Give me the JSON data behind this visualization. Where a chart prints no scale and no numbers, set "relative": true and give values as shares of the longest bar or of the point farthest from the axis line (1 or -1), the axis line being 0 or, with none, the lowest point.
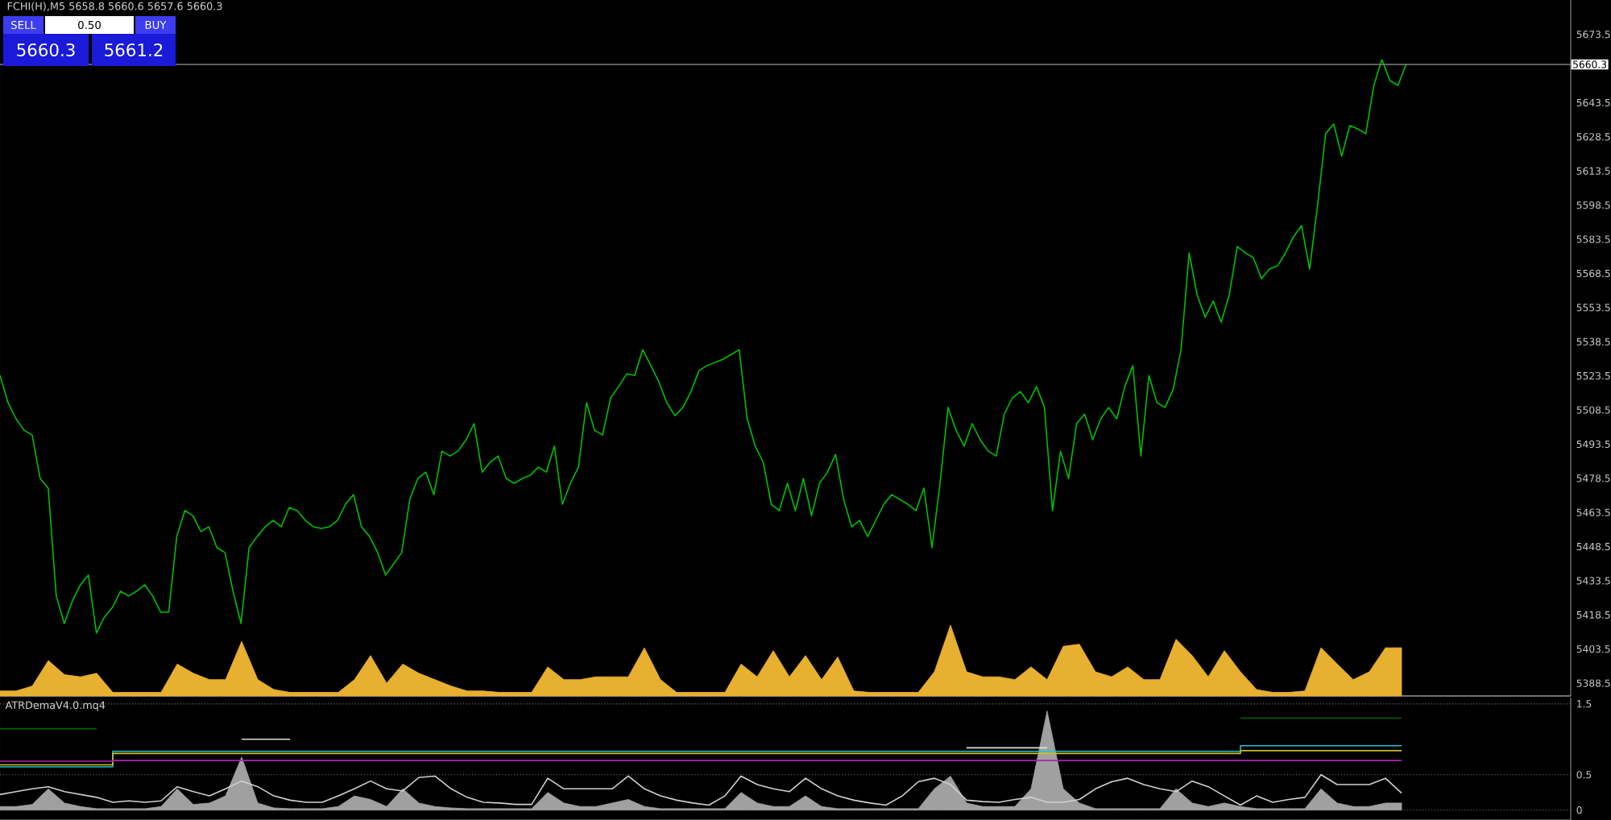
{
  "chart_data": [
    {
      "type": "line",
      "title": "FCHI(H),M5  5658.8 5660.6 5657.6 5660.3",
      "annotations": [
        "SELL",
        "0.50",
        "BUY",
        "5660.3",
        "5661.2"
      ],
      "categories": [
        null,
        null,
        null,
        null,
        null,
        null,
        null,
        null,
        null,
        null,
        null,
        null,
        null,
        null,
        null,
        null,
        null,
        null,
        null,
        null,
        null,
        null,
        null,
        null,
        null,
        null,
        null,
        null,
        null,
        null,
        null,
        null,
        null,
        null,
        null,
        null,
        null,
        null,
        null,
        null,
        null,
        null,
        null,
        null,
        null,
        null,
        null,
        null,
        null,
        null,
        null,
        null,
        null,
        null,
        null,
        null,
        null,
        null,
        null,
        null,
        null,
        null,
        null,
        null,
        null,
        null,
        null,
        null,
        null,
        null,
        null,
        null,
        null,
        null,
        null,
        null,
        null,
        null,
        null,
        null,
        null,
        null,
        null,
        null,
        null,
        null,
        null,
        null,
        null,
        null,
        null,
        null,
        null,
        null,
        null,
        null,
        null,
        null,
        null,
        null,
        null,
        null,
        null,
        null,
        null,
        null,
        null,
        null,
        null,
        null,
        null,
        null,
        null,
        null,
        null,
        null,
        null,
        null,
        null,
        null,
        null,
        null,
        null,
        null,
        null,
        null,
        null,
        null,
        null,
        null,
        null,
        null,
        null,
        null,
        null,
        null,
        null,
        null,
        null,
        null,
        null,
        null,
        null,
        null,
        null,
        null,
        null,
        null,
        null,
        null,
        null,
        null,
        null,
        null,
        null,
        null,
        null,
        null,
        null,
        null,
        null,
        null,
        null,
        null,
        null,
        null,
        null,
        null,
        null,
        null,
        null,
        null,
        null,
        null,
        null,
        null,
        null,
        null,
        null,
        null,
        null,
        null,
        null,
        null,
        null,
        null,
        null,
        null,
        null,
        null,
        null,
        null,
        null,
        null,
        null,
        null
      ],
      "ylim": [
        5382.9,
        5688.6
      ],
      "yticks": [
        5388.5,
        5403.5,
        5418.5,
        5433.5,
        5448.5,
        5463.5,
        5478.5,
        5493.5,
        5508.5,
        5523.5,
        5538.5,
        5553.5,
        5568.5,
        5583.5,
        5598.5,
        5613.5,
        5628.5,
        5643.5,
        5673.5
      ],
      "tick_labels": "y",
      "ref_lines": [
        {
          "axis": "y",
          "value": 5660.3,
          "label": "5660.3",
          "color": "#808080"
        }
      ],
      "series": [
        {
          "color": "#00c000",
          "values": [
            5523.7,
            5511.7,
            5504.6,
            5499.6,
            5497.5,
            5478.4,
            5474.2,
            5426.8,
            5414.7,
            5424.6,
            5431.7,
            5436.0,
            5410.5,
            5417.6,
            5421.8,
            5428.9,
            5426.8,
            5428.9,
            5431.7,
            5426.8,
            5419.7,
            5419.7,
            5452.9,
            5464.3,
            5462.1,
            5455.1,
            5457.2,
            5448.0,
            5445.9,
            5428.9,
            5414.7,
            5448.0,
            5452.9,
            5457.2,
            5460.0,
            5457.2,
            5465.7,
            5464.3,
            5460.0,
            5457.2,
            5456.5,
            5457.2,
            5460.0,
            5467.1,
            5471.3,
            5457.2,
            5452.9,
            5445.9,
            5436.0,
            5440.9,
            5445.9,
            5469.2,
            5478.4,
            5481.2,
            5471.3,
            5490.4,
            5488.3,
            5490.4,
            5495.4,
            5502.5,
            5481.2,
            5485.5,
            5488.3,
            5478.4,
            5476.3,
            5478.4,
            5479.8,
            5483.4,
            5481.2,
            5492.6,
            5467.1,
            5476.3,
            5483.4,
            5511.7,
            5499.6,
            5497.5,
            5513.8,
            5518.8,
            5524.4,
            5523.7,
            5535.0,
            5528.0,
            5520.9,
            5511.7,
            5506.0,
            5509.6,
            5516.6,
            5525.8,
            5528.0,
            5529.4,
            5530.8,
            5532.9,
            5535.0,
            5504.6,
            5492.6,
            5485.5,
            5467.1,
            5464.3,
            5476.3,
            5464.3,
            5478.4,
            5462.1,
            5476.3,
            5481.2,
            5489.0,
            5469.2,
            5457.2,
            5460.0,
            5452.9,
            5460.0,
            5467.1,
            5471.3,
            5469.2,
            5467.1,
            5464.3,
            5474.2,
            5448.0,
            5476.3,
            5509.6,
            5499.6,
            5492.6,
            5502.5,
            5495.4,
            5490.4,
            5488.3,
            5506.7,
            5513.8,
            5516.6,
            5511.7,
            5518.8,
            5509.6,
            5464.3,
            5490.4,
            5478.4,
            5502.5,
            5506.7,
            5495.4,
            5504.6,
            5509.6,
            5504.6,
            5518.8,
            5528.0,
            5488.3,
            5523.7,
            5511.7,
            5509.6,
            5517.3,
            5535.0,
            5577.5,
            5559.1,
            5549.2,
            5556.3,
            5547.1,
            5559.1,
            5580.3,
            5577.5,
            5575.4,
            5566.2,
            5570.4,
            5571.8,
            5577.5,
            5584.6,
            5589.5,
            5570.4,
            5598.7,
            5629.9,
            5634.1,
            5620.0,
            5633.4,
            5632.0,
            5629.9,
            5651.1,
            5662.4,
            5653.2,
            5651.1,
            5660.3,
            null,
            null,
            null,
            null,
            null,
            null,
            null,
            null,
            null,
            null,
            null,
            null,
            null,
            null,
            null,
            null,
            null,
            null,
            null,
            null
          ]
        }
      ]
    },
    {
      "type": "area",
      "relative": true,
      "tick_labels": false,
      "categories": [
        null,
        null,
        null,
        null,
        null,
        null,
        null,
        null,
        null,
        null,
        null,
        null,
        null,
        null,
        null,
        null,
        null,
        null,
        null,
        null,
        null,
        null,
        null,
        null,
        null,
        null,
        null,
        null,
        null,
        null,
        null,
        null,
        null,
        null,
        null,
        null,
        null,
        null,
        null,
        null,
        null,
        null,
        null,
        null,
        null,
        null,
        null,
        null,
        null,
        null,
        null,
        null,
        null,
        null,
        null,
        null,
        null,
        null,
        null,
        null,
        null,
        null,
        null,
        null,
        null,
        null,
        null,
        null,
        null,
        null,
        null,
        null,
        null,
        null,
        null,
        null,
        null,
        null,
        null,
        null,
        null,
        null,
        null,
        null,
        null,
        null,
        null,
        null,
        null,
        null,
        null,
        null,
        null,
        null,
        null,
        null,
        null,
        null
      ],
      "series": [
        {
          "color": "#e8b030",
          "values": [
            0.07,
            0.07,
            0.14,
            0.5,
            0.3,
            0.27,
            0.32,
            0.05,
            0.05,
            0.05,
            0.05,
            0.45,
            0.32,
            0.23,
            0.23,
            0.77,
            0.23,
            0.09,
            0.05,
            0.05,
            0.05,
            0.05,
            0.23,
            0.57,
            0.18,
            0.45,
            0.32,
            0.23,
            0.14,
            0.07,
            0.07,
            0.05,
            0.05,
            0.05,
            0.41,
            0.23,
            0.23,
            0.27,
            0.27,
            0.27,
            0.68,
            0.23,
            0.05,
            0.05,
            0.05,
            0.05,
            0.45,
            0.27,
            0.64,
            0.27,
            0.57,
            0.23,
            0.55,
            0.07,
            0.05,
            0.05,
            0.05,
            0.05,
            0.34,
            1,
            0.34,
            0.27,
            0.27,
            0.23,
            0.41,
            0.23,
            0.7,
            0.73,
            0.34,
            0.27,
            0.41,
            0.23,
            0.23,
            0.8,
            0.57,
            0.27,
            0.64,
            0.34,
            0.09,
            0.05,
            0.05,
            0.07,
            0.68,
            0.45,
            0.23,
            0.34,
            0.68,
            0.68,
            null,
            null,
            null,
            null,
            null,
            null,
            null,
            null,
            null,
            null
          ]
        }
      ]
    },
    {
      "type": "line",
      "title": "ATRDemaV4.0.mq4",
      "categories": [
        null,
        null,
        null,
        null,
        null,
        null,
        null,
        null,
        null,
        null,
        null,
        null,
        null,
        null,
        null,
        null,
        null,
        null,
        null,
        null,
        null,
        null,
        null,
        null,
        null,
        null,
        null,
        null,
        null,
        null,
        null,
        null,
        null,
        null,
        null,
        null,
        null,
        null,
        null,
        null,
        null,
        null,
        null,
        null,
        null,
        null,
        null,
        null,
        null,
        null,
        null,
        null,
        null,
        null,
        null,
        null,
        null,
        null,
        null,
        null,
        null,
        null,
        null,
        null,
        null,
        null,
        null,
        null,
        null,
        null,
        null,
        null,
        null,
        null,
        null,
        null,
        null,
        null,
        null,
        null,
        null,
        null,
        null,
        null,
        null,
        null,
        null,
        null,
        null,
        null,
        null,
        null,
        null,
        null,
        null,
        null,
        null,
        null
      ],
      "ylim": [
        -0.14,
        1.59
      ],
      "yticks": [
        0,
        0.5,
        1.5
      ],
      "grid": "y",
      "tick_labels": "y",
      "series": [
        {
          "type": "area",
          "color": "#a0a0a0",
          "values": [
            0.05,
            0.05,
            0.08,
            0.3,
            0.1,
            0.05,
            0.02,
            0.02,
            0.02,
            0.02,
            0.05,
            0.3,
            0.08,
            0.1,
            0.2,
            0.75,
            0.1,
            0.03,
            0.02,
            0.02,
            0.02,
            0.05,
            0.2,
            0.15,
            0.05,
            0.3,
            0.1,
            0.05,
            0.03,
            0.02,
            0.02,
            0.02,
            0.02,
            0.02,
            0.25,
            0.1,
            0.05,
            0.05,
            0.1,
            0.15,
            0.05,
            0.02,
            0.02,
            0.02,
            0.02,
            0.02,
            0.25,
            0.1,
            0.05,
            0.05,
            0.2,
            0.05,
            0.02,
            0.02,
            0.02,
            0.02,
            0.02,
            0.02,
            0.3,
            0.48,
            0.1,
            0.05,
            0.05,
            0.05,
            0.3,
            1.4,
            0.3,
            0.1,
            0.02,
            0.02,
            0.02,
            0.02,
            0.02,
            0.3,
            0.1,
            0.05,
            0.1,
            0.05,
            0.02,
            0.02,
            0.02,
            0.02,
            0.3,
            0.1,
            0.05,
            0.05,
            0.1,
            0.1,
            null,
            null,
            null,
            null,
            null,
            null,
            null,
            null,
            null,
            null
          ]
        },
        {
          "type": "step",
          "color": "#006400",
          "values": [
            1.15,
            1.15,
            1.15,
            1.15,
            1.15,
            1.15,
            1.15,
            null,
            null,
            null,
            null,
            null,
            null,
            null,
            null,
            null,
            null,
            null,
            null,
            null,
            null,
            null,
            null,
            null,
            null,
            null,
            null,
            null,
            null,
            null,
            null,
            null,
            null,
            null,
            null,
            null,
            null,
            null,
            null,
            null,
            null,
            null,
            null,
            null,
            null,
            null,
            null,
            null,
            null,
            null,
            null,
            null,
            null,
            null,
            null,
            null,
            null,
            null,
            null,
            null,
            null,
            null,
            null,
            null,
            null,
            null,
            null,
            null,
            null,
            null,
            null,
            null,
            null,
            null,
            null,
            null,
            null,
            1.3,
            1.3,
            1.3,
            1.3,
            1.3,
            1.3,
            1.3,
            1.3,
            1.3,
            1.3,
            1.3,
            null,
            null,
            null,
            null,
            null,
            null,
            null,
            null,
            null,
            null
          ]
        },
        {
          "type": "step",
          "color": "#20c0d0",
          "values": [
            0.61,
            0.61,
            0.61,
            0.61,
            0.61,
            0.61,
            0.61,
            0.83,
            0.83,
            0.83,
            0.83,
            0.83,
            0.83,
            0.83,
            0.83,
            0.83,
            0.83,
            0.83,
            0.83,
            0.83,
            0.83,
            0.83,
            0.83,
            0.83,
            0.83,
            0.83,
            0.83,
            0.83,
            0.83,
            0.83,
            0.83,
            0.83,
            0.83,
            0.83,
            0.83,
            0.83,
            0.83,
            0.83,
            0.83,
            0.83,
            0.83,
            0.83,
            0.83,
            0.83,
            0.83,
            0.83,
            0.83,
            0.83,
            0.83,
            0.83,
            0.83,
            0.83,
            0.83,
            0.83,
            0.83,
            0.83,
            0.83,
            0.83,
            0.83,
            0.83,
            0.83,
            0.83,
            0.83,
            0.83,
            0.83,
            0.83,
            0.83,
            0.83,
            0.83,
            0.83,
            0.83,
            0.83,
            0.83,
            0.83,
            0.83,
            0.83,
            0.83,
            0.91,
            0.91,
            0.91,
            0.91,
            0.91,
            0.91,
            0.91,
            0.91,
            0.91,
            0.91,
            0.91,
            null,
            null,
            null,
            null,
            null,
            null,
            null,
            null,
            null,
            null
          ]
        },
        {
          "type": "step",
          "color": "#c8c020",
          "values": [
            0.64,
            0.64,
            0.64,
            0.64,
            0.64,
            0.64,
            0.64,
            0.8,
            0.8,
            0.8,
            0.8,
            0.8,
            0.8,
            0.8,
            0.8,
            0.8,
            0.8,
            0.8,
            0.8,
            0.8,
            0.8,
            0.8,
            0.8,
            0.8,
            0.8,
            0.8,
            0.8,
            0.8,
            0.8,
            0.8,
            0.8,
            0.8,
            0.8,
            0.8,
            0.8,
            0.8,
            0.8,
            0.8,
            0.8,
            0.8,
            0.8,
            0.8,
            0.8,
            0.8,
            0.8,
            0.8,
            0.8,
            0.8,
            0.8,
            0.8,
            0.8,
            0.8,
            0.8,
            0.8,
            0.8,
            0.8,
            0.8,
            0.8,
            0.8,
            0.8,
            0.8,
            0.8,
            0.8,
            0.8,
            0.8,
            0.8,
            0.8,
            0.8,
            0.8,
            0.8,
            0.8,
            0.8,
            0.8,
            0.8,
            0.8,
            0.8,
            0.8,
            0.84,
            0.84,
            0.84,
            0.84,
            0.84,
            0.84,
            0.84,
            0.84,
            0.84,
            0.84,
            0.84,
            null,
            null,
            null,
            null,
            null,
            null,
            null,
            null,
            null,
            null
          ]
        },
        {
          "type": "step",
          "color": "#b020b0",
          "values": [
            0.69,
            0.69,
            0.69,
            0.69,
            0.69,
            0.69,
            0.69,
            0.7,
            0.7,
            0.7,
            0.7,
            0.7,
            0.7,
            0.7,
            0.7,
            0.7,
            0.7,
            0.7,
            0.7,
            0.7,
            0.7,
            0.7,
            0.7,
            0.7,
            0.7,
            0.7,
            0.7,
            0.7,
            0.7,
            0.7,
            0.7,
            0.7,
            0.7,
            0.7,
            0.7,
            0.7,
            0.7,
            0.7,
            0.7,
            0.7,
            0.7,
            0.7,
            0.7,
            0.7,
            0.7,
            0.7,
            0.7,
            0.7,
            0.7,
            0.7,
            0.7,
            0.7,
            0.7,
            0.7,
            0.7,
            0.7,
            0.7,
            0.7,
            0.7,
            0.7,
            0.7,
            0.7,
            0.7,
            0.7,
            0.7,
            0.7,
            0.7,
            0.7,
            0.7,
            0.7,
            0.7,
            0.7,
            0.7,
            0.7,
            0.7,
            0.7,
            0.7,
            0.7,
            0.7,
            0.7,
            0.7,
            0.7,
            0.7,
            0.7,
            0.7,
            0.7,
            0.7,
            0.7,
            null,
            null,
            null,
            null,
            null,
            null,
            null,
            null,
            null,
            null
          ]
        },
        {
          "type": "step",
          "color": "#e0e0e0",
          "values": [
            null,
            null,
            null,
            null,
            null,
            null,
            null,
            null,
            null,
            null,
            null,
            null,
            null,
            null,
            null,
            1.0,
            1.0,
            1.0,
            1.0,
            null,
            null,
            null,
            null,
            null,
            null,
            null,
            null,
            null,
            null,
            null,
            null,
            null,
            null,
            null,
            null,
            null,
            null,
            null,
            null,
            null,
            null,
            null,
            null,
            null,
            null,
            null,
            null,
            null,
            null,
            null,
            null,
            null,
            null,
            null,
            null,
            null,
            null,
            null,
            null,
            null,
            0.88,
            0.88,
            0.88,
            0.88,
            0.88,
            0.88,
            null,
            null,
            null,
            null,
            null,
            null,
            null,
            null,
            null,
            null,
            null,
            null,
            null,
            null,
            null,
            null,
            null,
            null,
            null,
            null,
            null,
            null,
            null,
            null,
            null,
            null,
            null,
            null,
            null,
            null,
            null,
            null
          ]
        },
        {
          "type": "line",
          "color": "#d0d0d0",
          "values": [
            0.22,
            0.26,
            0.3,
            0.33,
            0.26,
            0.22,
            0.18,
            0.11,
            0.13,
            0.11,
            0.13,
            0.33,
            0.26,
            0.2,
            0.3,
            0.41,
            0.33,
            0.2,
            0.14,
            0.11,
            0.11,
            0.2,
            0.3,
            0.41,
            0.3,
            0.27,
            0.46,
            0.48,
            0.3,
            0.18,
            0.11,
            0.1,
            0.08,
            0.08,
            0.45,
            0.3,
            0.3,
            0.3,
            0.3,
            0.48,
            0.3,
            0.2,
            0.14,
            0.1,
            0.07,
            0.2,
            0.48,
            0.36,
            0.3,
            0.26,
            0.45,
            0.3,
            0.2,
            0.14,
            0.1,
            0.07,
            0.2,
            0.4,
            0.45,
            0.36,
            0.14,
            0.12,
            0.11,
            0.15,
            0.18,
            0.11,
            0.11,
            0.15,
            0.3,
            0.4,
            0.45,
            0.36,
            0.3,
            0.26,
            0.41,
            0.33,
            0.2,
            0.07,
            0.2,
            0.11,
            0.15,
            0.18,
            0.5,
            0.36,
            0.36,
            0.36,
            0.45,
            0.24,
            null,
            null,
            null,
            null,
            null,
            null,
            null,
            null,
            null,
            null
          ]
        }
      ]
    }
  ]
}
